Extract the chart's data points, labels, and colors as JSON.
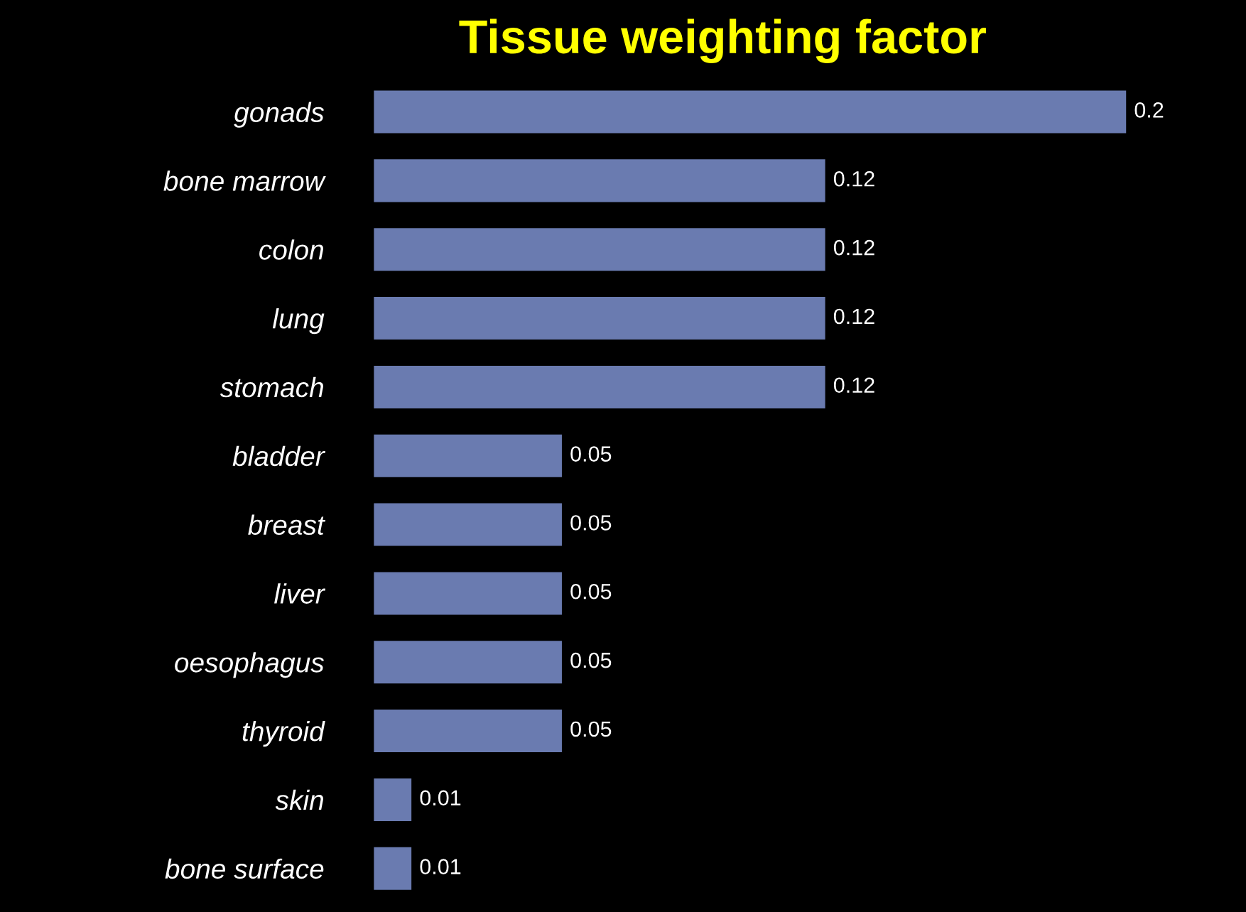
{
  "chart_data": {
    "type": "bar",
    "orientation": "horizontal",
    "title": "Tissue weighting factor",
    "categories": [
      "gonads",
      "bone marrow",
      "colon",
      "lung",
      "stomach",
      "bladder",
      "breast",
      "liver",
      "oesophagus",
      "thyroid",
      "skin",
      "bone surface"
    ],
    "values": [
      0.2,
      0.12,
      0.12,
      0.12,
      0.12,
      0.05,
      0.05,
      0.05,
      0.05,
      0.05,
      0.01,
      0.01
    ],
    "color": "#6a7bb0",
    "data_labels": true,
    "grid": false,
    "legend": false
  }
}
